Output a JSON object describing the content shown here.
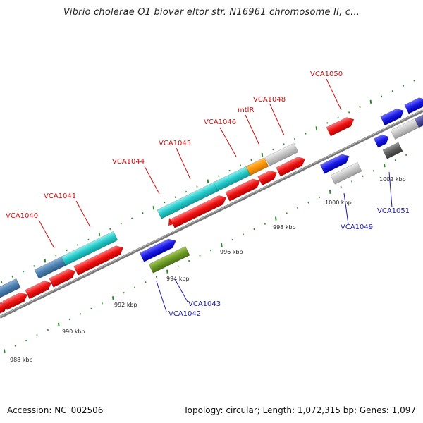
{
  "header": {
    "title": "Vibrio cholerae O1 biovar eltor str. N16961 chromosome II, c..."
  },
  "footer": {
    "accession": "Accession: NC_002506",
    "summary": "Topology: circular; Length: 1,072,315 bp; Genes: 1,097"
  },
  "colors": {
    "backbone": "#888888",
    "top_label": "#cc1111",
    "bottom_label": "#1a1aaa",
    "tick": "#2a8a2a"
  },
  "scale_ticks": [
    {
      "label": "988 kbp",
      "kbp": 988
    },
    {
      "label": "990 kbp",
      "kbp": 990
    },
    {
      "label": "992 kbp",
      "kbp": 992
    },
    {
      "label": "994 kbp",
      "kbp": 994
    },
    {
      "label": "996 kbp",
      "kbp": 996
    },
    {
      "label": "998 kbp",
      "kbp": 998
    },
    {
      "label": "1000 kbp",
      "kbp": 1000
    },
    {
      "label": "1002 kbp",
      "kbp": 1002
    }
  ],
  "gene_labels_top": [
    "VCA1040",
    "VCA1041",
    "VCA1044",
    "VCA1045",
    "VCA1046",
    "mtlR",
    "VCA1048",
    "VCA1050"
  ],
  "gene_labels_bottom": [
    "VCA1042",
    "VCA1043",
    "VCA1049",
    "VCA1051"
  ]
}
